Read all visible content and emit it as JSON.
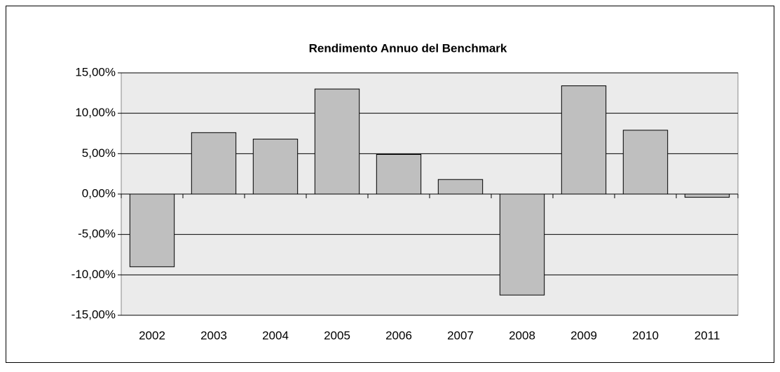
{
  "chart_data": {
    "type": "bar",
    "title": "Rendimento Annuo del Benchmark",
    "categories": [
      "2002",
      "2003",
      "2004",
      "2005",
      "2006",
      "2007",
      "2008",
      "2009",
      "2010",
      "2011"
    ],
    "values": [
      -9.0,
      7.6,
      6.8,
      13.0,
      4.9,
      1.8,
      -12.5,
      13.4,
      7.9,
      -0.4
    ],
    "color": "#bfbfbf",
    "ylim": [
      -15,
      15
    ],
    "yticks": [
      {
        "value": -15,
        "label": "-15,00%"
      },
      {
        "value": -10,
        "label": "-10,00%"
      },
      {
        "value": -5,
        "label": "-5,00%"
      },
      {
        "value": 0,
        "label": "0,00%"
      },
      {
        "value": 5,
        "label": "5,00%"
      },
      {
        "value": 10,
        "label": "10,00%"
      },
      {
        "value": 15,
        "label": "15,00%"
      }
    ],
    "grid": true
  }
}
